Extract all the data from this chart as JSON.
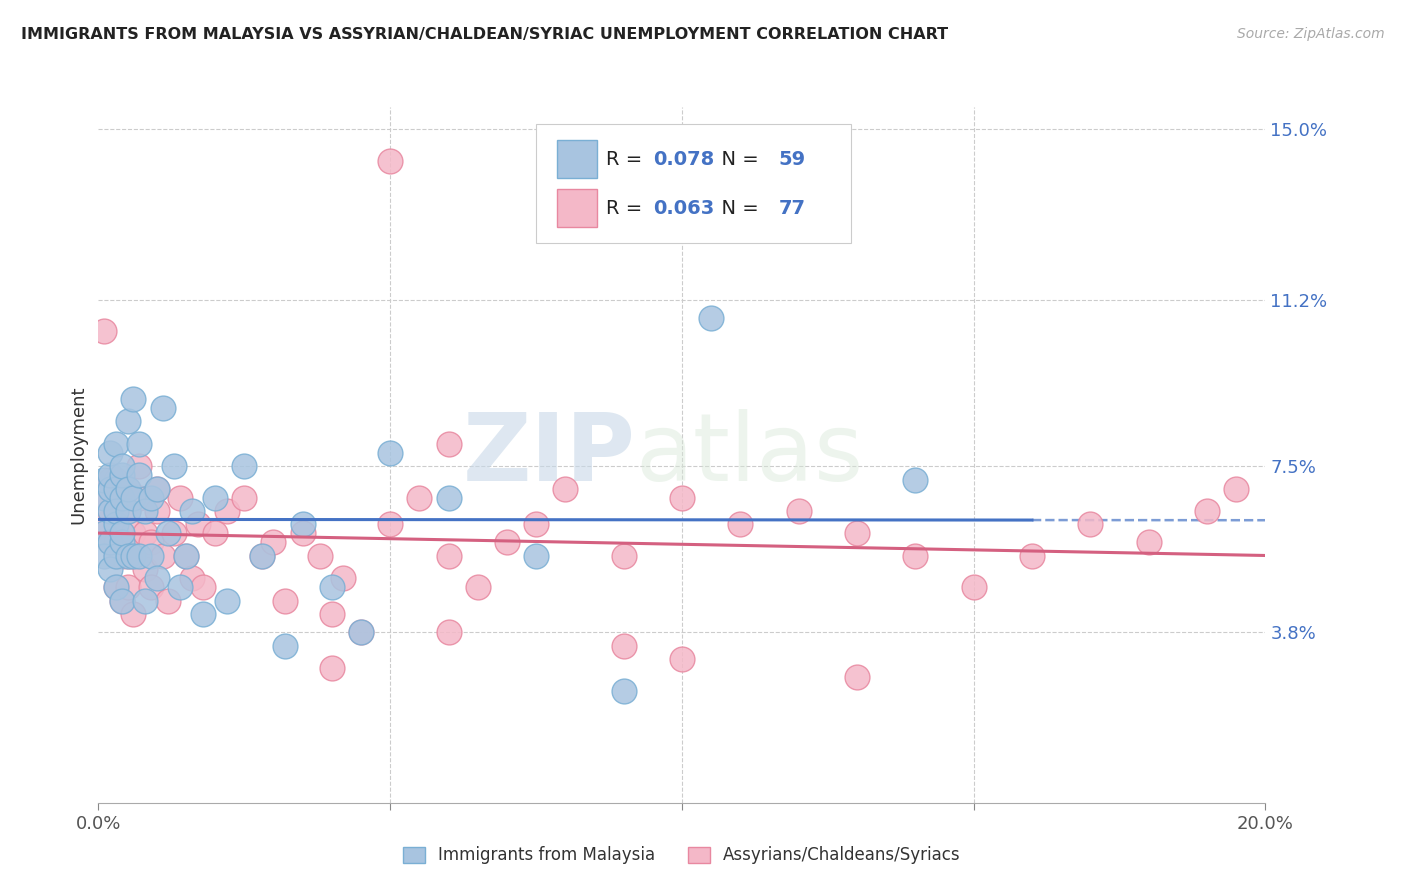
{
  "title": "IMMIGRANTS FROM MALAYSIA VS ASSYRIAN/CHALDEAN/SYRIAC UNEMPLOYMENT CORRELATION CHART",
  "source": "Source: ZipAtlas.com",
  "ylabel": "Unemployment",
  "series1_label": "Immigrants from Malaysia",
  "series1_R": "0.078",
  "series1_N": "59",
  "series1_color": "#a8c4e0",
  "series1_edge": "#7aafd4",
  "series2_label": "Assyrians/Chaldeans/Syriacs",
  "series2_R": "0.063",
  "series2_N": "77",
  "series2_color": "#f4b8c8",
  "series2_edge": "#e888a0",
  "trend1_color": "#4472C4",
  "trend2_color": "#d46080",
  "background_color": "#ffffff",
  "watermark_zip": "ZIP",
  "watermark_atlas": "atlas",
  "xlim": [
    0.0,
    0.2
  ],
  "ylim": [
    0.0,
    0.155
  ],
  "ytick_positions": [
    0.038,
    0.075,
    0.112,
    0.15
  ],
  "ytick_labels": [
    "3.8%",
    "7.5%",
    "11.2%",
    "15.0%"
  ],
  "series1_x": [
    0.001,
    0.001,
    0.001,
    0.001,
    0.002,
    0.002,
    0.002,
    0.002,
    0.002,
    0.002,
    0.003,
    0.003,
    0.003,
    0.003,
    0.003,
    0.003,
    0.004,
    0.004,
    0.004,
    0.004,
    0.004,
    0.004,
    0.005,
    0.005,
    0.005,
    0.005,
    0.006,
    0.006,
    0.006,
    0.007,
    0.007,
    0.007,
    0.008,
    0.008,
    0.009,
    0.009,
    0.01,
    0.01,
    0.011,
    0.012,
    0.013,
    0.014,
    0.015,
    0.016,
    0.018,
    0.02,
    0.022,
    0.025,
    0.028,
    0.032,
    0.035,
    0.04,
    0.045,
    0.05,
    0.06,
    0.075,
    0.09,
    0.105,
    0.14
  ],
  "series1_y": [
    0.068,
    0.072,
    0.06,
    0.055,
    0.065,
    0.07,
    0.058,
    0.073,
    0.078,
    0.052,
    0.062,
    0.055,
    0.07,
    0.048,
    0.065,
    0.08,
    0.058,
    0.068,
    0.073,
    0.045,
    0.075,
    0.06,
    0.055,
    0.065,
    0.085,
    0.07,
    0.068,
    0.055,
    0.09,
    0.073,
    0.055,
    0.08,
    0.065,
    0.045,
    0.068,
    0.055,
    0.07,
    0.05,
    0.088,
    0.06,
    0.075,
    0.048,
    0.055,
    0.065,
    0.042,
    0.068,
    0.045,
    0.075,
    0.055,
    0.035,
    0.062,
    0.048,
    0.038,
    0.078,
    0.068,
    0.055,
    0.025,
    0.108,
    0.072
  ],
  "series2_x": [
    0.001,
    0.001,
    0.001,
    0.002,
    0.002,
    0.002,
    0.002,
    0.003,
    0.003,
    0.003,
    0.003,
    0.003,
    0.004,
    0.004,
    0.004,
    0.004,
    0.005,
    0.005,
    0.005,
    0.005,
    0.006,
    0.006,
    0.006,
    0.007,
    0.007,
    0.007,
    0.008,
    0.008,
    0.009,
    0.009,
    0.01,
    0.01,
    0.011,
    0.012,
    0.013,
    0.014,
    0.015,
    0.016,
    0.017,
    0.018,
    0.02,
    0.022,
    0.025,
    0.028,
    0.03,
    0.032,
    0.035,
    0.038,
    0.04,
    0.042,
    0.045,
    0.05,
    0.055,
    0.06,
    0.065,
    0.07,
    0.075,
    0.08,
    0.09,
    0.1,
    0.11,
    0.12,
    0.13,
    0.14,
    0.15,
    0.16,
    0.17,
    0.18,
    0.19,
    0.195,
    0.05,
    0.06,
    0.1,
    0.13,
    0.06,
    0.09,
    0.04
  ],
  "series2_y": [
    0.068,
    0.105,
    0.062,
    0.07,
    0.058,
    0.072,
    0.065,
    0.055,
    0.065,
    0.048,
    0.058,
    0.072,
    0.055,
    0.068,
    0.045,
    0.06,
    0.055,
    0.065,
    0.07,
    0.048,
    0.055,
    0.06,
    0.042,
    0.068,
    0.055,
    0.075,
    0.052,
    0.06,
    0.058,
    0.048,
    0.065,
    0.07,
    0.055,
    0.045,
    0.06,
    0.068,
    0.055,
    0.05,
    0.062,
    0.048,
    0.06,
    0.065,
    0.068,
    0.055,
    0.058,
    0.045,
    0.06,
    0.055,
    0.042,
    0.05,
    0.038,
    0.062,
    0.068,
    0.055,
    0.048,
    0.058,
    0.062,
    0.07,
    0.055,
    0.068,
    0.062,
    0.065,
    0.06,
    0.055,
    0.048,
    0.055,
    0.062,
    0.058,
    0.065,
    0.07,
    0.143,
    0.08,
    0.032,
    0.028,
    0.038,
    0.035,
    0.03
  ]
}
